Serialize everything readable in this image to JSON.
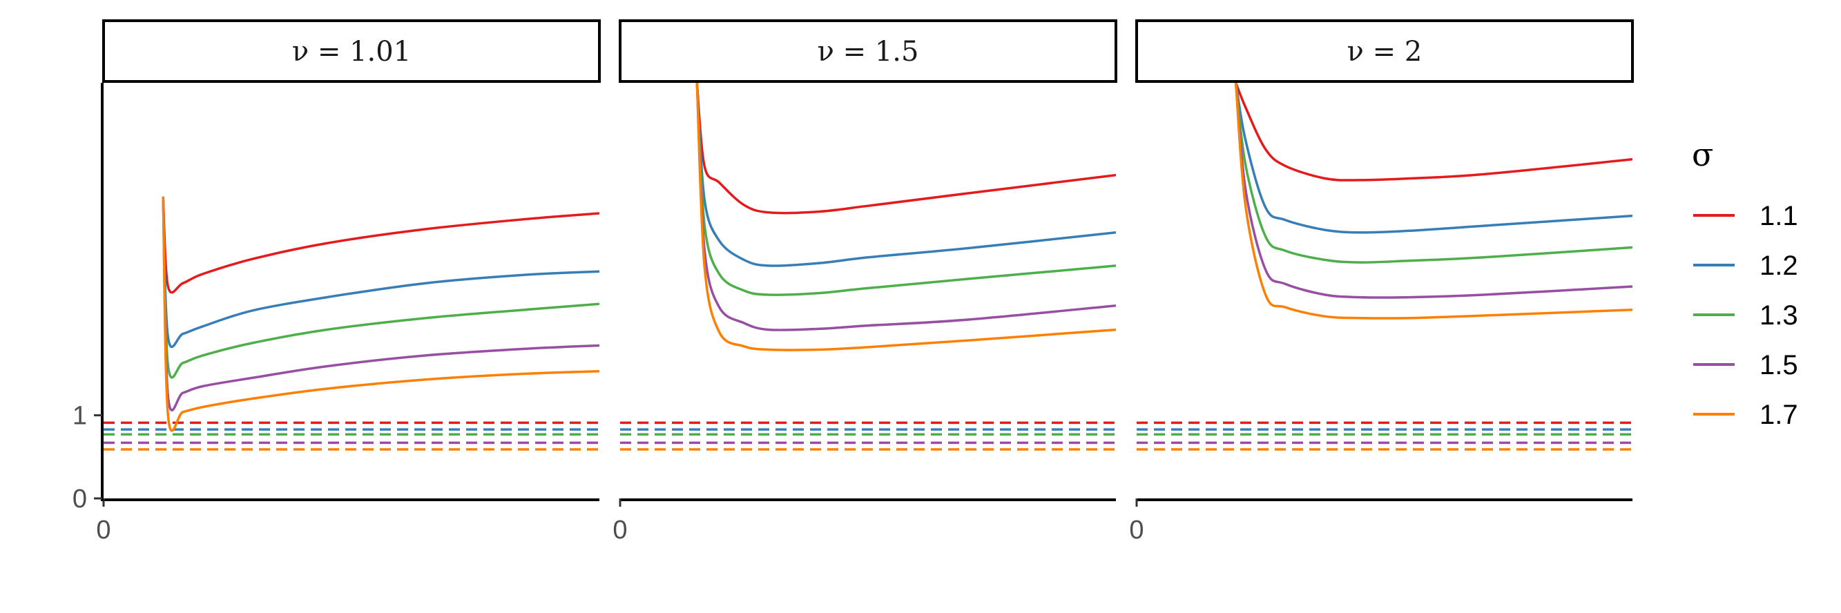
{
  "chart_data": {
    "type": "line",
    "facet_label_prefix": "ν = ",
    "panels": [
      {
        "nu": "1.01",
        "x_origin_label": "0",
        "series": [
          {
            "name": "1.1",
            "x": [
              0.12,
              0.13,
              0.16,
              0.2,
              0.3,
              0.45,
              0.65,
              0.85,
              1.0
            ],
            "y": [
              3.63,
              2.55,
              2.59,
              2.7,
              2.88,
              3.07,
              3.24,
              3.36,
              3.43
            ]
          },
          {
            "name": "1.2",
            "x": [
              0.12,
              0.13,
              0.16,
              0.2,
              0.3,
              0.45,
              0.65,
              0.85,
              1.0
            ],
            "y": [
              3.63,
              1.94,
              1.98,
              2.07,
              2.26,
              2.42,
              2.59,
              2.69,
              2.73
            ]
          },
          {
            "name": "1.3",
            "x": [
              0.12,
              0.13,
              0.16,
              0.2,
              0.3,
              0.45,
              0.65,
              0.85,
              1.0
            ],
            "y": [
              3.63,
              1.6,
              1.63,
              1.72,
              1.87,
              2.03,
              2.17,
              2.27,
              2.34
            ]
          },
          {
            "name": "1.5",
            "x": [
              0.12,
              0.13,
              0.16,
              0.2,
              0.3,
              0.45,
              0.65,
              0.85,
              1.0
            ],
            "y": [
              3.63,
              1.23,
              1.27,
              1.35,
              1.45,
              1.59,
              1.72,
              1.8,
              1.84
            ]
          },
          {
            "name": "1.7",
            "x": [
              0.12,
              0.13,
              0.16,
              0.2,
              0.3,
              0.45,
              0.65,
              0.85,
              1.0
            ],
            "y": [
              3.63,
              1.0,
              1.04,
              1.1,
              1.2,
              1.32,
              1.43,
              1.5,
              1.53
            ]
          }
        ]
      },
      {
        "nu": "1.5",
        "x_origin_label": "0",
        "series": [
          {
            "name": "1.1",
            "x": [
              0.155,
              0.17,
              0.2,
              0.25,
              0.3,
              0.4,
              0.5,
              0.7,
              1.0
            ],
            "y": [
              5.0,
              4.0,
              3.8,
              3.53,
              3.44,
              3.45,
              3.52,
              3.67,
              3.89
            ]
          },
          {
            "name": "1.2",
            "x": [
              0.155,
              0.17,
              0.2,
              0.25,
              0.3,
              0.4,
              0.5,
              0.7,
              1.0
            ],
            "y": [
              5.0,
              3.6,
              3.1,
              2.87,
              2.8,
              2.83,
              2.9,
              3.01,
              3.2
            ]
          },
          {
            "name": "1.3",
            "x": [
              0.155,
              0.17,
              0.2,
              0.25,
              0.3,
              0.4,
              0.5,
              0.7,
              1.0
            ],
            "y": [
              5.0,
              3.3,
              2.7,
              2.5,
              2.45,
              2.47,
              2.53,
              2.64,
              2.8
            ]
          },
          {
            "name": "1.5",
            "x": [
              0.155,
              0.17,
              0.2,
              0.25,
              0.3,
              0.4,
              0.5,
              0.7,
              1.0
            ],
            "y": [
              5.0,
              3.0,
              2.3,
              2.11,
              2.03,
              2.04,
              2.08,
              2.15,
              2.32
            ]
          },
          {
            "name": "1.7",
            "x": [
              0.155,
              0.17,
              0.2,
              0.25,
              0.3,
              0.4,
              0.5,
              0.7,
              1.0
            ],
            "y": [
              5.0,
              2.8,
              2.0,
              1.83,
              1.79,
              1.79,
              1.82,
              1.9,
              2.03
            ]
          }
        ]
      },
      {
        "nu": "2",
        "x_origin_label": "0",
        "series": [
          {
            "name": "1.1",
            "x": [
              0.2,
              0.22,
              0.26,
              0.3,
              0.38,
              0.45,
              0.55,
              0.7,
              1.0
            ],
            "y": [
              5.0,
              4.7,
              4.2,
              4.0,
              3.85,
              3.83,
              3.85,
              3.9,
              4.08
            ]
          },
          {
            "name": "1.2",
            "x": [
              0.2,
              0.22,
              0.26,
              0.3,
              0.38,
              0.45,
              0.55,
              0.7,
              1.0
            ],
            "y": [
              5.0,
              4.3,
              3.5,
              3.35,
              3.23,
              3.2,
              3.22,
              3.28,
              3.4
            ]
          },
          {
            "name": "1.3",
            "x": [
              0.2,
              0.22,
              0.26,
              0.3,
              0.38,
              0.45,
              0.55,
              0.7,
              1.0
            ],
            "y": [
              5.0,
              4.0,
              3.15,
              2.98,
              2.87,
              2.84,
              2.86,
              2.9,
              3.02
            ]
          },
          {
            "name": "1.5",
            "x": [
              0.2,
              0.22,
              0.26,
              0.3,
              0.38,
              0.45,
              0.55,
              0.7,
              1.0
            ],
            "y": [
              5.0,
              3.7,
              2.75,
              2.58,
              2.45,
              2.42,
              2.42,
              2.45,
              2.55
            ]
          },
          {
            "name": "1.7",
            "x": [
              0.2,
              0.22,
              0.26,
              0.3,
              0.38,
              0.45,
              0.55,
              0.7,
              1.0
            ],
            "y": [
              5.0,
              3.5,
              2.45,
              2.3,
              2.19,
              2.17,
              2.17,
              2.2,
              2.27
            ]
          }
        ]
      }
    ],
    "reference_lines": [
      {
        "name": "1.1",
        "y": 0.91
      },
      {
        "name": "1.2",
        "y": 0.83
      },
      {
        "name": "1.3",
        "y": 0.77
      },
      {
        "name": "1.5",
        "y": 0.67
      },
      {
        "name": "1.7",
        "y": 0.59
      }
    ],
    "reference_line_style": "dashed",
    "y_ticks": [
      "0",
      "1"
    ],
    "y_tick_values": [
      0,
      1
    ],
    "xlim": [
      0,
      1
    ],
    "ylim": [
      0,
      5
    ],
    "grid": false,
    "legend": {
      "title": "σ",
      "position": "right",
      "entries": [
        "1.1",
        "1.2",
        "1.3",
        "1.5",
        "1.7"
      ]
    },
    "colors": {
      "1.1": "#E41A1C",
      "1.2": "#377EB8",
      "1.3": "#4DAF4A",
      "1.5": "#984EA3",
      "1.7": "#FF7F00"
    }
  }
}
